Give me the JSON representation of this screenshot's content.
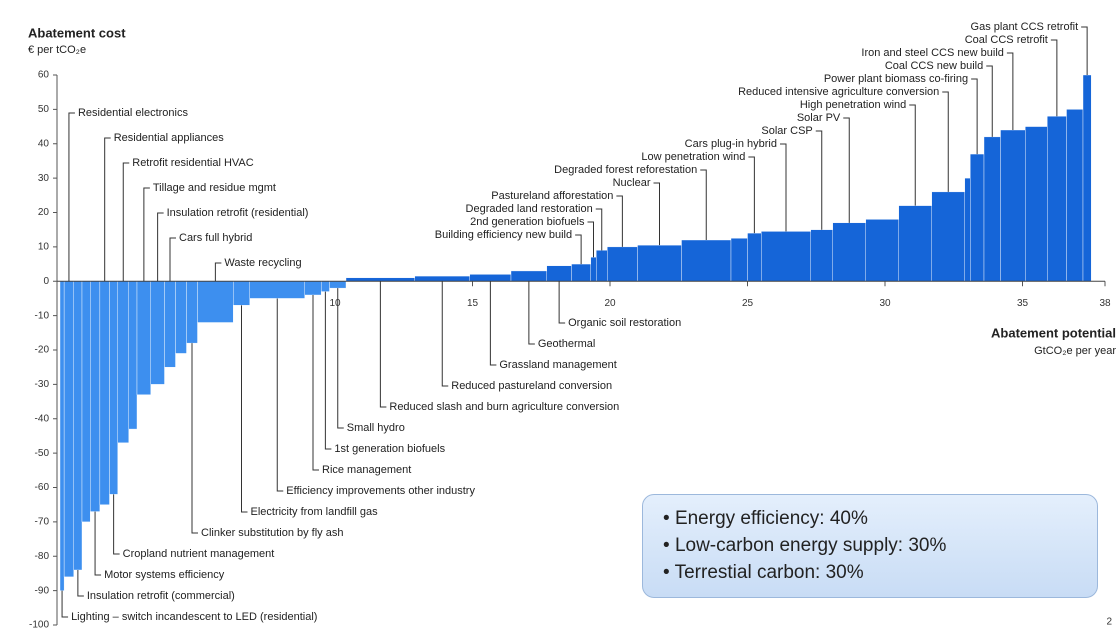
{
  "chart_data": {
    "type": "cost_curve",
    "title": "Abatement cost",
    "subtitle": "€ per tCO₂e",
    "x_label": "Abatement potential",
    "x_unit": "GtCO₂e per year",
    "color": "#1565d8",
    "negative_color": "#3d8fef",
    "ylim": [
      -100,
      60
    ],
    "yticks": [
      60,
      50,
      40,
      30,
      20,
      10,
      0,
      -10,
      -20,
      -30,
      -40,
      -50,
      -60,
      -70,
      -80,
      -90,
      -100
    ],
    "xlim": [
      0,
      38
    ],
    "xticks": [
      10,
      15,
      20,
      25,
      30,
      35,
      38
    ],
    "categories": [
      "Lighting – switch incandescent to LED (residential)",
      "Residential electronics",
      "Insulation retrofit (commercial)",
      null,
      "Motor systems efficiency",
      "Residential appliances",
      "Cropland nutrient management",
      "Retrofit residential HVAC",
      null,
      "Tillage and residue mgmt",
      "Insulation retrofit (residential)",
      "Cars full hybrid",
      null,
      "Clinker substitution by fly ash",
      "Waste recycling",
      "Electricity from landfill gas",
      "Efficiency improvements other industry",
      "Rice management",
      "1st generation biofuels",
      "Small hydro",
      "Reduced slash and burn agriculture conversion",
      "Reduced pastureland conversion",
      "Grassland management",
      "Geothermal",
      "Organic soil restoration",
      "Building efficiency new build",
      "2nd generation biofuels",
      "Degraded land restoration",
      "Pastureland afforestation",
      "Nuclear",
      "Degraded forest reforestation",
      null,
      "Low penetration wind",
      "Cars plug-in hybrid",
      "Solar CSP",
      "Solar PV",
      null,
      "High penetration wind",
      "Reduced intensive agriculture conversion",
      null,
      "Power plant biomass co-firing",
      "Coal CCS new build",
      "Iron and steel CCS new build",
      null,
      "Coal CCS retrofit",
      null,
      "Gas plant CCS retrofit"
    ],
    "label_side": [
      "bottom",
      "top",
      "bottom",
      null,
      "bottom",
      "top",
      "bottom",
      "top",
      null,
      "top",
      "top",
      "top",
      null,
      "bottom",
      "top",
      "bottom",
      "bottom",
      "bottom",
      "bottom",
      "bottom",
      "bottom",
      "bottom",
      "bottom",
      "bottom",
      "bottom",
      "top",
      "top",
      "top",
      "top",
      "top",
      "top",
      null,
      "top",
      "top",
      "top",
      "top",
      null,
      "top",
      "top",
      null,
      "top",
      "top",
      "top",
      null,
      "top",
      null,
      "top"
    ],
    "widths": [
      0.15,
      0.35,
      0.3,
      0.3,
      0.35,
      0.35,
      0.3,
      0.4,
      0.3,
      0.5,
      0.5,
      0.4,
      0.4,
      0.4,
      1.3,
      0.6,
      2.0,
      0.6,
      0.3,
      0.6,
      2.5,
      2.0,
      1.5,
      1.3,
      0.9,
      0.7,
      0.2,
      0.4,
      1.1,
      1.6,
      1.8,
      0.6,
      0.5,
      1.8,
      0.8,
      1.2,
      1.2,
      1.2,
      1.2,
      0.2,
      0.5,
      0.6,
      0.9,
      0.8,
      0.7,
      0.6,
      0.3
    ],
    "values": [
      -90,
      -86,
      -84,
      -70,
      -67,
      -65,
      -62,
      -47,
      -43,
      -33,
      -30,
      -25,
      -21,
      -18,
      -12,
      -7,
      -5,
      -4,
      -3,
      -2,
      1,
      1.5,
      2,
      3,
      4.5,
      5,
      7,
      9,
      10,
      10.5,
      12,
      12.5,
      14,
      14.5,
      15,
      17,
      18,
      22,
      26,
      30,
      37,
      42,
      44,
      45,
      48,
      50,
      60
    ],
    "annotation_box": [
      "Energy efficiency: 40%",
      "Low-carbon energy supply: 30%",
      "Terrestial carbon: 30%"
    ],
    "page_number": "2"
  }
}
